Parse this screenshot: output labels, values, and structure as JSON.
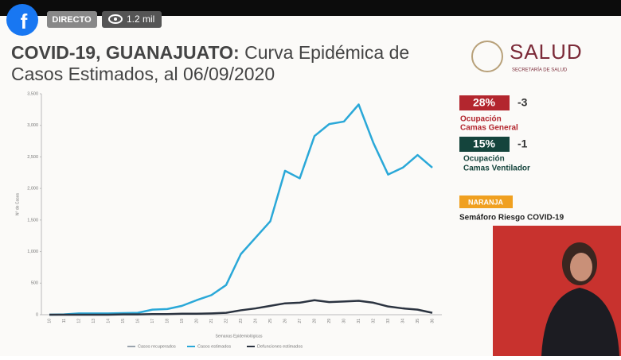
{
  "stream": {
    "live_label": "DIRECTO",
    "viewers": "1.2 mil"
  },
  "slide": {
    "title_lead": "COVID-19, GUANAJUATO:",
    "title_rest_1": "Curva Epidémica de",
    "title_rest_2": "Casos Estimados, al 06/09/2020",
    "logo_text": "SALUD",
    "logo_sub": "SECRETARÍA DE SALUD",
    "indicators": [
      {
        "value": "28%",
        "change": "-3",
        "line1": "Ocupación",
        "line2": "Camas General"
      },
      {
        "value": "15%",
        "change": "-1",
        "line1": "Ocupación",
        "line2": "Camas Ventilador"
      }
    ],
    "risk_level": "NARANJA",
    "risk_label": "Semáforo Riesgo COVID-19"
  },
  "chart_data": {
    "type": "line",
    "x_label": "Semanas Epidemiológicas",
    "y_label": "N° de Casos",
    "categories": [
      "10",
      "11",
      "12",
      "13",
      "14",
      "15",
      "16",
      "17",
      "18",
      "19",
      "20",
      "21",
      "22",
      "23",
      "24",
      "25",
      "26",
      "27",
      "28",
      "29",
      "30",
      "31",
      "32",
      "33",
      "34",
      "35",
      "36"
    ],
    "series": [
      {
        "name": "Casos recuperados",
        "color": "#9aa3ad",
        "values": [
          null,
          null,
          null,
          null,
          null,
          null,
          null,
          null,
          null,
          null,
          null,
          null,
          null,
          null,
          null,
          null,
          null,
          null,
          null,
          null,
          null,
          null,
          null,
          null,
          null,
          null,
          null
        ]
      },
      {
        "name": "Casos estimados",
        "color": "#2aa8d8",
        "values": [
          0,
          5,
          20,
          20,
          20,
          25,
          30,
          80,
          90,
          140,
          230,
          310,
          470,
          960,
          1220,
          1480,
          2280,
          2160,
          2830,
          3020,
          3060,
          3330,
          2720,
          2220,
          2330,
          2530,
          2330
        ]
      },
      {
        "name": "Defunciones estimados",
        "color": "#2b3340",
        "values": [
          0,
          0,
          0,
          0,
          0,
          5,
          5,
          10,
          10,
          15,
          15,
          20,
          30,
          70,
          100,
          140,
          180,
          190,
          230,
          200,
          210,
          220,
          190,
          130,
          100,
          80,
          30
        ]
      }
    ],
    "ylim": [
      0,
      3500
    ],
    "yticks": [
      0,
      500,
      {
        "value": 1000,
        "label": "1,000"
      },
      {
        "value": 1500,
        "label": "1,500"
      },
      {
        "value": 2000,
        "label": "2,000"
      },
      {
        "value": 2500,
        "label": "2,500"
      },
      {
        "value": 3000,
        "label": "3,000"
      },
      {
        "value": 3500,
        "label": "3,500"
      }
    ],
    "grid": false
  }
}
